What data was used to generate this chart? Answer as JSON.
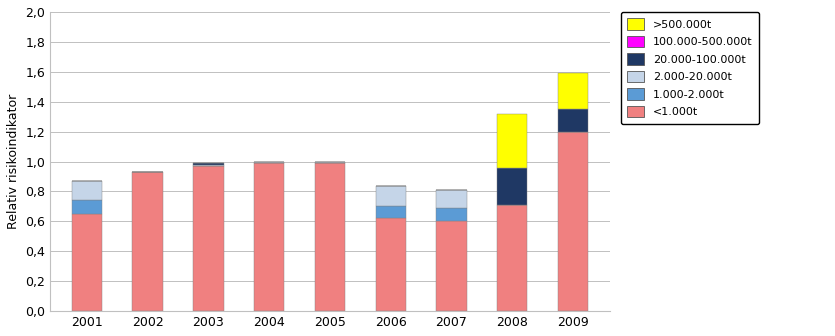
{
  "years": [
    "2001",
    "2002",
    "2003",
    "2004",
    "2005",
    "2006",
    "2007",
    "2008",
    "2009"
  ],
  "segments": {
    "<1.000t": [
      0.65,
      0.93,
      0.97,
      0.99,
      0.99,
      0.62,
      0.6,
      0.71,
      1.2
    ],
    "1.000-2.000t": [
      0.09,
      0.0,
      0.0,
      0.0,
      0.0,
      0.08,
      0.09,
      0.0,
      0.0
    ],
    "2.000-20.000t": [
      0.13,
      0.0,
      0.01,
      0.01,
      0.01,
      0.14,
      0.12,
      0.0,
      0.0
    ],
    "20.000-100.000t": [
      0.0,
      0.0,
      0.01,
      0.0,
      0.0,
      0.0,
      0.0,
      0.25,
      0.15
    ],
    "100.000-500.000t": [
      0.0,
      0.0,
      0.0,
      0.0,
      0.0,
      0.0,
      0.0,
      0.0,
      0.0
    ],
    ">500.000t": [
      0.0,
      0.0,
      0.0,
      0.0,
      0.0,
      0.0,
      0.0,
      0.36,
      0.24
    ]
  },
  "colors": {
    "<1.000t": "#F08080",
    "1.000-2.000t": "#5B9BD5",
    "20.000-100.000t": "#1F3864",
    "2.000-20.000t": "#C5D5E8",
    "100.000-500.000t": "#FF00FF",
    ">500.000t": "#FFFF00"
  },
  "legend_order": [
    ">500.000t",
    "100.000-500.000t",
    "20.000-100.000t",
    "2.000-20.000t",
    "1.000-2.000t",
    "<1.000t"
  ],
  "stack_order": [
    "<1.000t",
    "1.000-2.000t",
    "2.000-20.000t",
    "20.000-100.000t",
    "100.000-500.000t",
    ">500.000t"
  ],
  "ylabel": "Relativ risikoindikator",
  "ylim": [
    0.0,
    2.0
  ],
  "yticks": [
    0.0,
    0.2,
    0.4,
    0.6,
    0.8,
    1.0,
    1.2,
    1.4,
    1.6,
    1.8,
    2.0
  ],
  "bar_width": 0.5,
  "background_color": "#FFFFFF",
  "grid_color": "#C0C0C0",
  "bar_edge_color": "#808080"
}
